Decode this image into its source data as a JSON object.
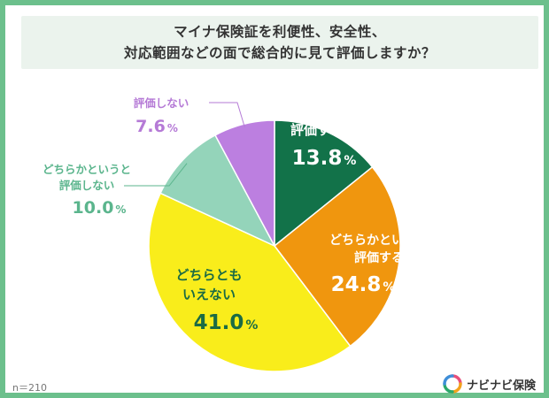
{
  "title": {
    "line1": "マイナ保険証を利便性、安全性、",
    "line2": "対応範囲などの面で総合的に見て評価しますか？"
  },
  "sample_note": "n＝210",
  "brand": {
    "name": "ナビナビ保険",
    "icon": "navinavi-logo-icon"
  },
  "colors": {
    "frame": "#6cc08c",
    "title_bg": "#ebf3ed",
    "slice_evaluate": "#127249",
    "slice_somewhat_evaluate": "#f0960e",
    "slice_neither": "#f9ed1b",
    "slice_somewhat_not": "#94d4ba",
    "slice_not": "#bc7fe0"
  },
  "chart_data": {
    "type": "pie",
    "slices": [
      {
        "label": "評価する",
        "value": 13.8,
        "display": "13.8",
        "color": "#127249",
        "label_color": "#ffffff"
      },
      {
        "label": "どちらかというと評価する",
        "value": 24.8,
        "display": "24.8",
        "color": "#f0960e",
        "label_color": "#ffffff"
      },
      {
        "label": "どちらともいえない",
        "value": 41.0,
        "display": "41.0",
        "color": "#f9ed1b",
        "label_color": "#1b6b44"
      },
      {
        "label": "どちらかというと評価しない",
        "value": 10.0,
        "display": "10.0",
        "color": "#94d4ba",
        "label_color": "#5bb58d"
      },
      {
        "label": "評価しない",
        "value": 7.6,
        "display": "7.6",
        "color": "#bc7fe0",
        "label_color": "#b57ad6"
      }
    ],
    "unit": "%"
  }
}
